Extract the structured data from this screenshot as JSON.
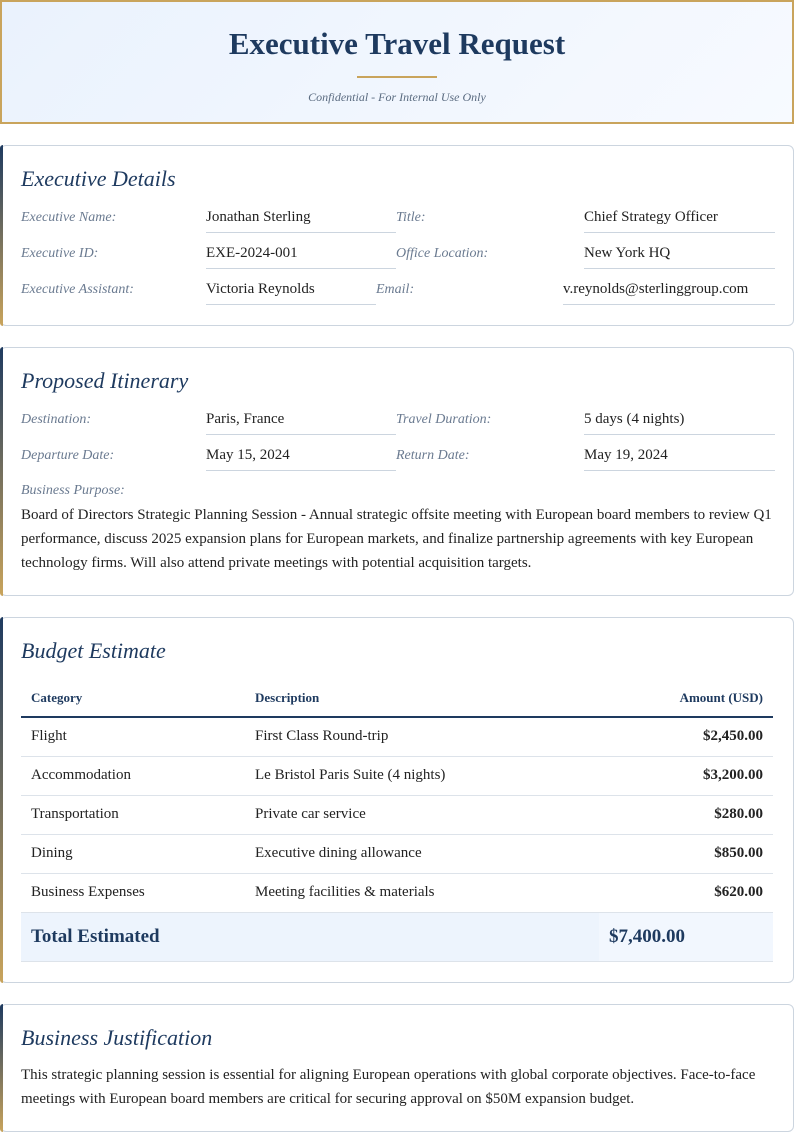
{
  "header": {
    "title": "Executive Travel Request",
    "subtitle": "Confidential - For Internal Use Only"
  },
  "executive": {
    "heading": "Executive Details",
    "fields": [
      {
        "label": "Executive Name:",
        "value": "Jonathan Sterling"
      },
      {
        "label": "Title:",
        "value": "Chief Strategy Officer"
      },
      {
        "label": "Executive ID:",
        "value": "EXE-2024-001"
      },
      {
        "label": "Office Location:",
        "value": "New York HQ"
      },
      {
        "label": "Executive Assistant:",
        "value": "Victoria Reynolds"
      },
      {
        "label": "Email:",
        "value": "v.reynolds@sterlinggroup.com"
      }
    ]
  },
  "itinerary": {
    "heading": "Proposed Itinerary",
    "fields": [
      {
        "label": "Destination:",
        "value": "Paris, France"
      },
      {
        "label": "Travel Duration:",
        "value": "5 days (4 nights)"
      },
      {
        "label": "Departure Date:",
        "value": "May 15, 2024"
      },
      {
        "label": "Return Date:",
        "value": "May 19, 2024"
      }
    ],
    "purpose_label": "Business Purpose:",
    "purpose": "Board of Directors Strategic Planning Session - Annual strategic offsite meeting with European board members to review Q1 performance, discuss 2025 expansion plans for European markets, and finalize partnership agreements with key European technology firms. Will also attend private meetings with potential acquisition targets."
  },
  "budget": {
    "heading": "Budget Estimate",
    "columns": [
      "Category",
      "Description",
      "Amount (USD)"
    ],
    "rows": [
      [
        "Flight",
        "First Class Round-trip",
        "$2,450.00"
      ],
      [
        "Accommodation",
        "Le Bristol Paris Suite (4 nights)",
        "$3,200.00"
      ],
      [
        "Transportation",
        "Private car service",
        "$280.00"
      ],
      [
        "Dining",
        "Executive dining allowance",
        "$850.00"
      ],
      [
        "Business Expenses",
        "Meeting facilities & materials",
        "$620.00"
      ]
    ],
    "total_label": "Total Estimated",
    "total": "$7,400.00"
  },
  "justification": {
    "heading": "Business Justification",
    "text": "This strategic planning session is essential for aligning European operations with global corporate objectives. Face-to-face meetings with European board members are critical for securing approval on $50M expansion budget."
  }
}
